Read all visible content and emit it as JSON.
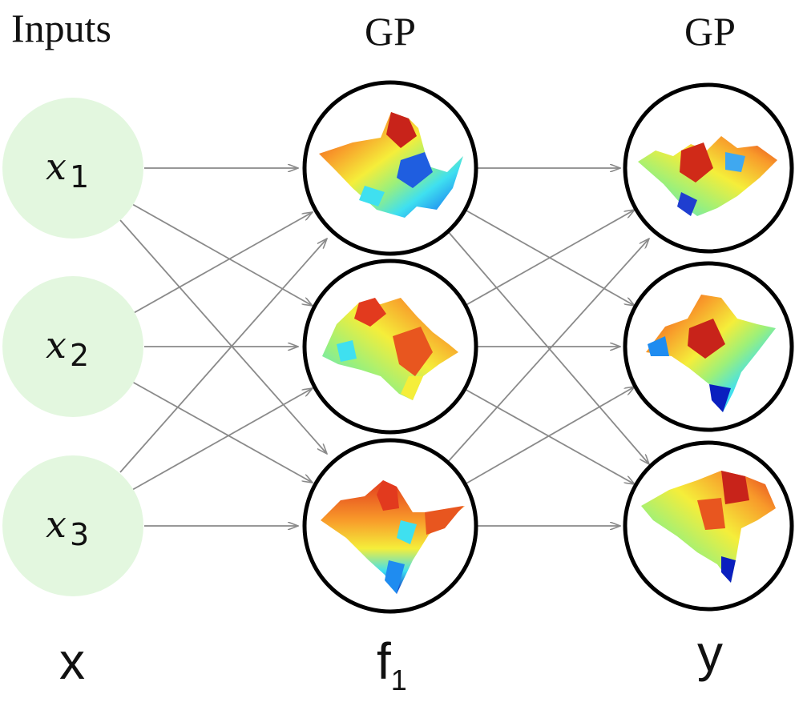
{
  "headers": {
    "inputs": "Inputs",
    "layer1": "GP",
    "layer2": "GP"
  },
  "nodes": {
    "inputs": [
      {
        "name": "x",
        "subscript": "1"
      },
      {
        "name": "x",
        "subscript": "2"
      },
      {
        "name": "x",
        "subscript": "3"
      }
    ]
  },
  "footer": {
    "inputs": "x",
    "layer1": "f",
    "layer1_subscript": "1",
    "layer2": "y"
  },
  "colors": {
    "input_fill": "#e3f7df",
    "gp_stroke": "#000000",
    "edge": "#8a8a8a",
    "surface_palette": [
      "#0a1fbf",
      "#1f8cf0",
      "#3fe0f0",
      "#9cf07a",
      "#f5ee3a",
      "#f89a2a",
      "#e23a1e",
      "#a8120f"
    ]
  },
  "icons": {
    "gp_node": "3d-surface-plot-icon",
    "edge_arrow": "arrow-head-icon"
  }
}
